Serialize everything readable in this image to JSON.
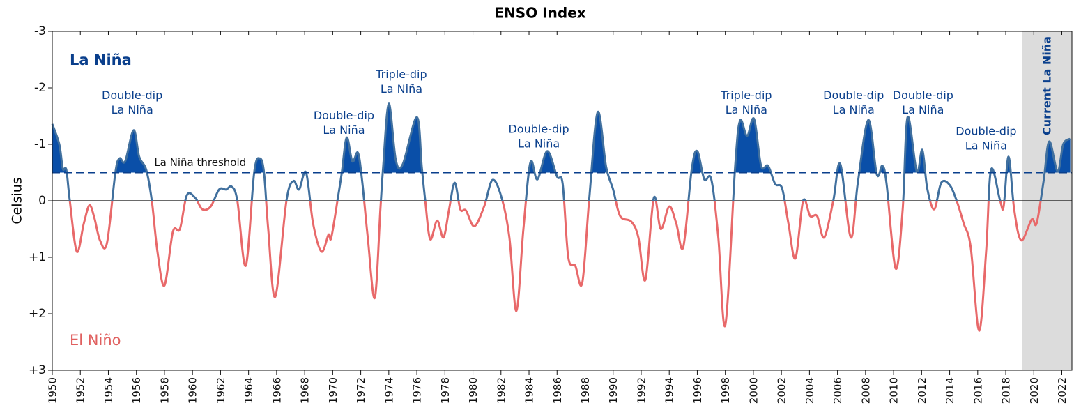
{
  "chart_data": {
    "type": "line",
    "title": "ENSO Index",
    "ylabel": "Celsius",
    "y_inverted": true,
    "xlim": [
      1950,
      2022.72
    ],
    "ylim": [
      -3,
      3
    ],
    "yticks": [
      -3,
      -2,
      -1,
      0,
      {
        "value": 1,
        "label": "+1"
      },
      {
        "value": 2,
        "label": "+2"
      },
      {
        "value": 3,
        "label": "+3"
      }
    ],
    "xticks": [
      1950,
      1952,
      1954,
      1956,
      1958,
      1960,
      1962,
      1964,
      1966,
      1968,
      1970,
      1972,
      1974,
      1976,
      1978,
      1980,
      1982,
      1984,
      1986,
      1988,
      1990,
      1992,
      1994,
      1996,
      1998,
      2000,
      2002,
      2004,
      2006,
      2008,
      2010,
      2012,
      2014,
      2016,
      2018,
      2020,
      2022
    ],
    "labels": {
      "la_nina": "La Niña",
      "el_nino": "El Niño"
    },
    "colors": {
      "la_nina": "#0a4fa8",
      "neutral": "#41709e",
      "el_nino": "#e8696a",
      "label_la_nina": "#0a3f8c",
      "label_el_nino": "#e0605f"
    },
    "threshold": {
      "value": -0.5,
      "label": "La Niña threshold"
    },
    "shaded_region": {
      "x": [
        2019.15,
        2022.72
      ],
      "label": "Current La Niña",
      "color": "#dcdcdc"
    },
    "annotations": [
      {
        "text": [
          "Double-dip",
          "La Niña"
        ],
        "x": 1955.7,
        "y": -1.86
      },
      {
        "text": [
          "Double-dip",
          "La Niña"
        ],
        "x": 1970.8,
        "y": -1.5
      },
      {
        "text": [
          "Triple-dip",
          "La Niña"
        ],
        "x": 1974.9,
        "y": -2.23
      },
      {
        "text": [
          "Double-dip",
          "La Niña"
        ],
        "x": 1984.7,
        "y": -1.26
      },
      {
        "text": [
          "Triple-dip",
          "La Niña"
        ],
        "x": 1999.5,
        "y": -1.86
      },
      {
        "text": [
          "Double-dip",
          "La Niña"
        ],
        "x": 2007.15,
        "y": -1.86
      },
      {
        "text": [
          "Double-dip",
          "La Niña"
        ],
        "x": 2012.1,
        "y": -1.86
      },
      {
        "text": [
          "Double-dip",
          "La Niña"
        ],
        "x": 2016.6,
        "y": -1.22
      }
    ],
    "series": [
      {
        "name": "ENSO Index",
        "x": [
          1950.0,
          1950.5,
          1950.75,
          1951.0,
          1951.25,
          1951.75,
          1952.25,
          1952.65,
          1953.0,
          1953.4,
          1953.9,
          1954.5,
          1954.8,
          1955.2,
          1955.8,
          1956.2,
          1956.7,
          1957.1,
          1957.5,
          1958.0,
          1958.6,
          1959.1,
          1959.6,
          1960.2,
          1960.7,
          1961.3,
          1961.9,
          1962.4,
          1962.8,
          1963.2,
          1963.8,
          1964.4,
          1964.8,
          1965.1,
          1965.4,
          1965.9,
          1966.7,
          1967.2,
          1967.6,
          1968.1,
          1968.6,
          1969.2,
          1969.7,
          1969.9,
          1970.4,
          1970.65,
          1971.0,
          1971.4,
          1971.8,
          1972.1,
          1972.5,
          1973.0,
          1973.4,
          1973.6,
          1974.0,
          1974.5,
          1975.0,
          1976.0,
          1976.35,
          1976.6,
          1976.95,
          1977.45,
          1977.9,
          1978.3,
          1978.7,
          1979.1,
          1979.5,
          1980.1,
          1980.8,
          1981.4,
          1982.05,
          1982.6,
          1983.1,
          1983.6,
          1984.1,
          1984.6,
          1985.3,
          1986.0,
          1986.4,
          1986.8,
          1987.3,
          1987.8,
          1988.3,
          1988.9,
          1989.5,
          1990.0,
          1990.5,
          1991.3,
          1991.8,
          1992.3,
          1992.9,
          1993.4,
          1994.0,
          1994.5,
          1995.0,
          1995.6,
          1996.0,
          1996.5,
          1997.0,
          1997.5,
          1998.0,
          1998.7,
          1999.05,
          1999.55,
          2000.05,
          2000.55,
          2001.05,
          2001.55,
          2002.05,
          2002.5,
          2003.0,
          2003.55,
          2004.05,
          2004.55,
          2005.05,
          2005.7,
          2006.2,
          2006.95,
          2007.45,
          2008.2,
          2008.8,
          2009.2,
          2009.5,
          2010.15,
          2010.65,
          2011.0,
          2011.65,
          2012.05,
          2012.4,
          2012.9,
          2013.4,
          2014.0,
          2014.5,
          2015.0,
          2015.5,
          2016.1,
          2016.6,
          2016.95,
          2017.6,
          2017.85,
          2018.2,
          2018.6,
          2019.1,
          2019.85,
          2020.2,
          2020.7,
          2021.1,
          2021.7,
          2022.1,
          2022.6
        ],
        "values": [
          -1.36,
          -1.0,
          -0.57,
          -0.55,
          0.0,
          0.9,
          0.4,
          0.08,
          0.3,
          0.7,
          0.75,
          -0.5,
          -0.75,
          -0.7,
          -1.25,
          -0.78,
          -0.55,
          0.0,
          0.9,
          1.5,
          0.55,
          0.5,
          -0.1,
          -0.05,
          0.15,
          0.1,
          -0.2,
          -0.2,
          -0.25,
          0.0,
          1.15,
          -0.5,
          -0.75,
          -0.5,
          0.5,
          1.7,
          0.0,
          -0.35,
          -0.2,
          -0.5,
          0.4,
          0.9,
          0.6,
          0.65,
          -0.1,
          -0.5,
          -1.12,
          -0.7,
          -0.85,
          -0.35,
          0.65,
          1.72,
          0.15,
          -0.6,
          -1.72,
          -0.72,
          -0.65,
          -1.48,
          -0.6,
          0.0,
          0.68,
          0.35,
          0.65,
          0.15,
          -0.32,
          0.15,
          0.17,
          0.45,
          0.1,
          -0.37,
          -0.05,
          0.65,
          1.95,
          0.5,
          -0.68,
          -0.38,
          -0.88,
          -0.43,
          -0.3,
          1.0,
          1.15,
          1.45,
          -0.05,
          -1.57,
          -0.6,
          -0.2,
          0.27,
          0.37,
          0.65,
          1.4,
          -0.05,
          0.5,
          0.1,
          0.4,
          0.82,
          -0.55,
          -0.88,
          -0.38,
          -0.38,
          0.65,
          2.2,
          -0.6,
          -1.42,
          -1.15,
          -1.45,
          -0.62,
          -0.62,
          -0.3,
          -0.22,
          0.4,
          1.02,
          0.0,
          0.27,
          0.27,
          0.65,
          0.0,
          -0.65,
          0.65,
          -0.32,
          -1.43,
          -0.47,
          -0.62,
          -0.3,
          1.2,
          0.15,
          -1.48,
          -0.52,
          -0.9,
          -0.22,
          0.15,
          -0.32,
          -0.28,
          0.0,
          0.4,
          0.82,
          2.3,
          0.9,
          -0.55,
          0.0,
          0.1,
          -0.78,
          0.15,
          0.7,
          0.33,
          0.4,
          -0.35,
          -1.05,
          -0.52,
          -1.0,
          -1.1
        ]
      }
    ]
  }
}
